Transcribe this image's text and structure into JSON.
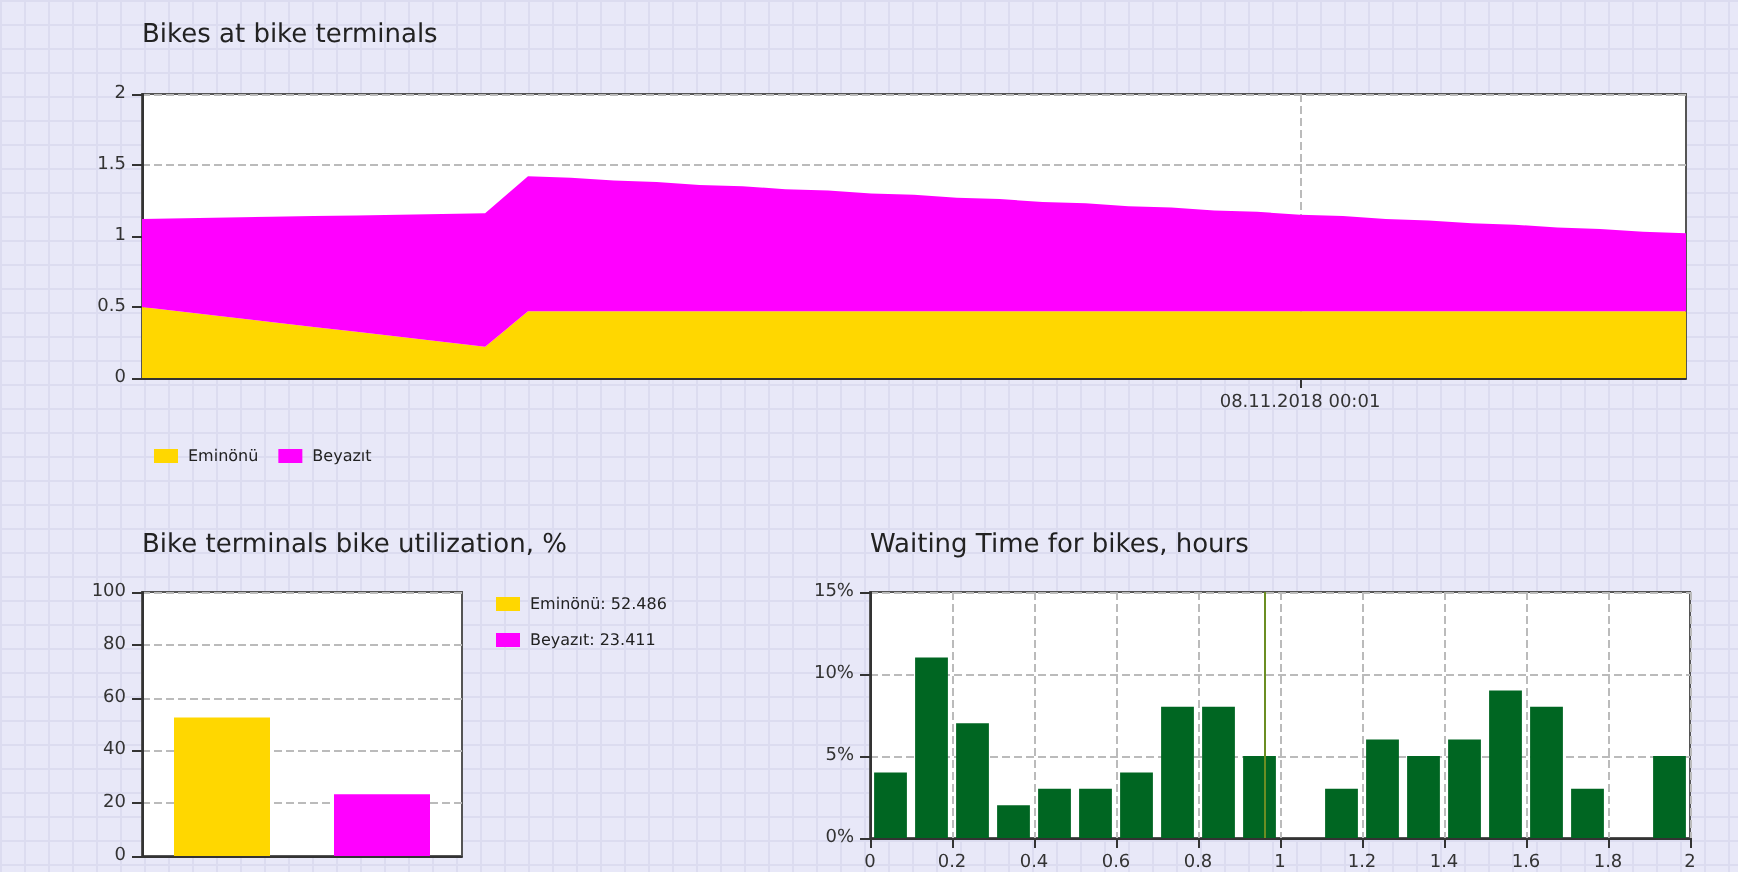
{
  "chart_data": [
    {
      "type": "area",
      "title": "Bikes at bike terminals",
      "stacked": true,
      "categories": [
        null,
        null,
        null,
        null,
        null,
        null,
        null,
        null,
        null,
        null,
        null,
        null,
        null,
        null,
        null,
        null,
        null,
        null,
        null,
        null,
        null,
        null,
        null,
        null,
        null,
        null,
        null,
        "08.11.2018 00:01",
        null,
        null,
        null,
        null,
        null,
        null,
        null,
        null,
        null
      ],
      "series": [
        {
          "name": "Eminönü",
          "color": "#ffd700",
          "values": [
            0.5,
            0.465,
            0.43,
            0.395,
            0.36,
            0.325,
            0.29,
            0.255,
            0.22,
            0.47,
            0.47,
            0.47,
            0.47,
            0.47,
            0.47,
            0.47,
            0.47,
            0.47,
            0.47,
            0.47,
            0.47,
            0.47,
            0.47,
            0.47,
            0.47,
            0.47,
            0.47,
            0.47,
            0.47,
            0.47,
            0.47,
            0.47,
            0.47,
            0.47,
            0.47,
            0.47,
            0.47
          ]
        },
        {
          "name": "Beyazıt",
          "color": "#ff00ff",
          "values": [
            0.62,
            0.66,
            0.7,
            0.74,
            0.78,
            0.82,
            0.86,
            0.9,
            0.94,
            0.95,
            0.94,
            0.92,
            0.91,
            0.89,
            0.88,
            0.86,
            0.85,
            0.83,
            0.82,
            0.8,
            0.79,
            0.77,
            0.76,
            0.74,
            0.73,
            0.71,
            0.7,
            0.68,
            0.67,
            0.65,
            0.64,
            0.62,
            0.61,
            0.59,
            0.58,
            0.56,
            0.55
          ]
        }
      ],
      "ylim": [
        0,
        2
      ],
      "yticks": [
        0,
        0.5,
        1,
        1.5,
        2
      ],
      "grid": true,
      "legend": "bottom left"
    },
    {
      "type": "bar",
      "title": "Bike terminals bike utilization, %",
      "stacked": true,
      "categories": [
        null,
        null
      ],
      "series": [
        {
          "name": "Eminönü: 52.486",
          "color": "#ffd700",
          "values": [
            52.486,
            null
          ]
        },
        {
          "name": "Beyazıt: 23.411",
          "color": "#ff00ff",
          "values": [
            null,
            23.411
          ]
        }
      ],
      "ylim": [
        0,
        100
      ],
      "yticks": [
        0,
        20,
        40,
        60,
        80,
        100
      ],
      "grid": "y",
      "legend": "right"
    },
    {
      "type": "histogram",
      "title": "Waiting Time for bikes, hours",
      "color": "#006622",
      "bins": [
        0,
        0.1,
        0.2,
        0.3,
        0.4,
        0.5,
        0.6,
        0.7,
        0.8,
        0.9,
        1,
        1.1,
        1.2,
        1.3,
        1.4,
        1.5,
        1.6,
        1.7,
        1.8,
        1.9,
        2
      ],
      "values": [
        4,
        11,
        7,
        2,
        3,
        3,
        4,
        8,
        8,
        5,
        0,
        3,
        6,
        5,
        6,
        9,
        8,
        3,
        0,
        5
      ],
      "xlim": [
        0,
        2
      ],
      "xticks": [
        0,
        0.2,
        0.4,
        0.6,
        0.8,
        1,
        1.2,
        1.4,
        1.6,
        1.8,
        2
      ],
      "ylim": [
        0,
        15
      ],
      "yticks": [
        {
          "value": 0,
          "label": "0%"
        },
        {
          "value": 5,
          "label": "5%"
        },
        {
          "value": 10,
          "label": "10%"
        },
        {
          "value": 15,
          "label": "15%"
        }
      ],
      "ref_lines": [
        {
          "axis": "x",
          "value": 0.96,
          "color": "#6b8e23"
        }
      ],
      "grid": true
    }
  ]
}
